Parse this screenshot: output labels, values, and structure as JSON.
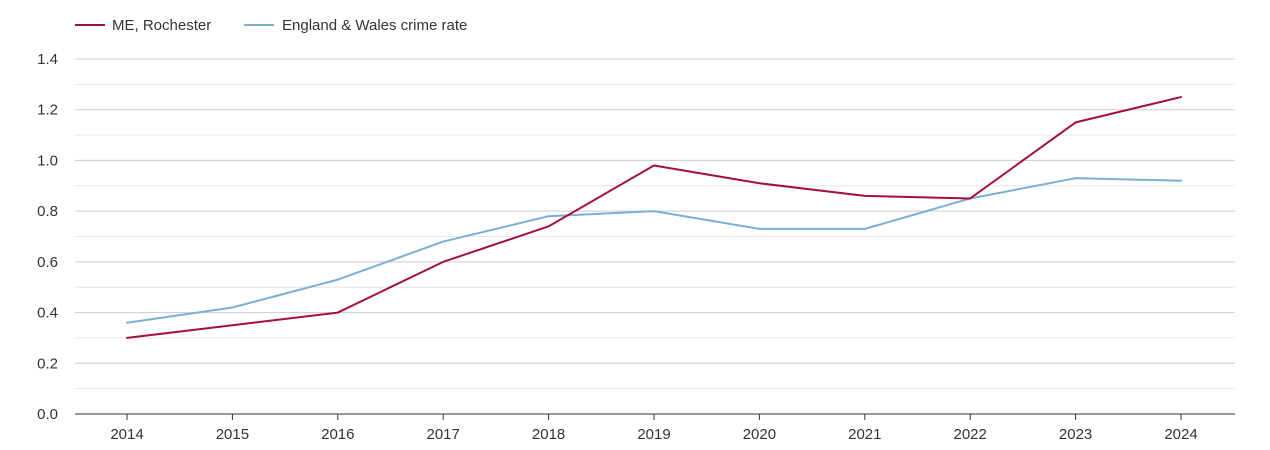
{
  "chart_data": {
    "type": "line",
    "x": [
      "2014",
      "2015",
      "2016",
      "2017",
      "2018",
      "2019",
      "2020",
      "2021",
      "2022",
      "2023",
      "2024"
    ],
    "series": [
      {
        "name": "ME, Rochester",
        "color": "#a50f3c",
        "values": [
          0.3,
          0.35,
          0.4,
          0.6,
          0.74,
          0.98,
          0.91,
          0.86,
          0.85,
          1.15,
          1.25
        ]
      },
      {
        "name": "England & Wales crime rate",
        "color": "#7bafd4",
        "values": [
          0.36,
          0.42,
          0.53,
          0.68,
          0.78,
          0.8,
          0.73,
          0.73,
          0.85,
          0.93,
          0.92
        ]
      }
    ],
    "ylim": [
      0,
      1.4
    ],
    "yticks": [
      "0.0",
      "0.2",
      "0.4",
      "0.6",
      "0.8",
      "1.0",
      "1.2",
      "1.4"
    ],
    "grid": true,
    "legend_position": "top-left"
  }
}
